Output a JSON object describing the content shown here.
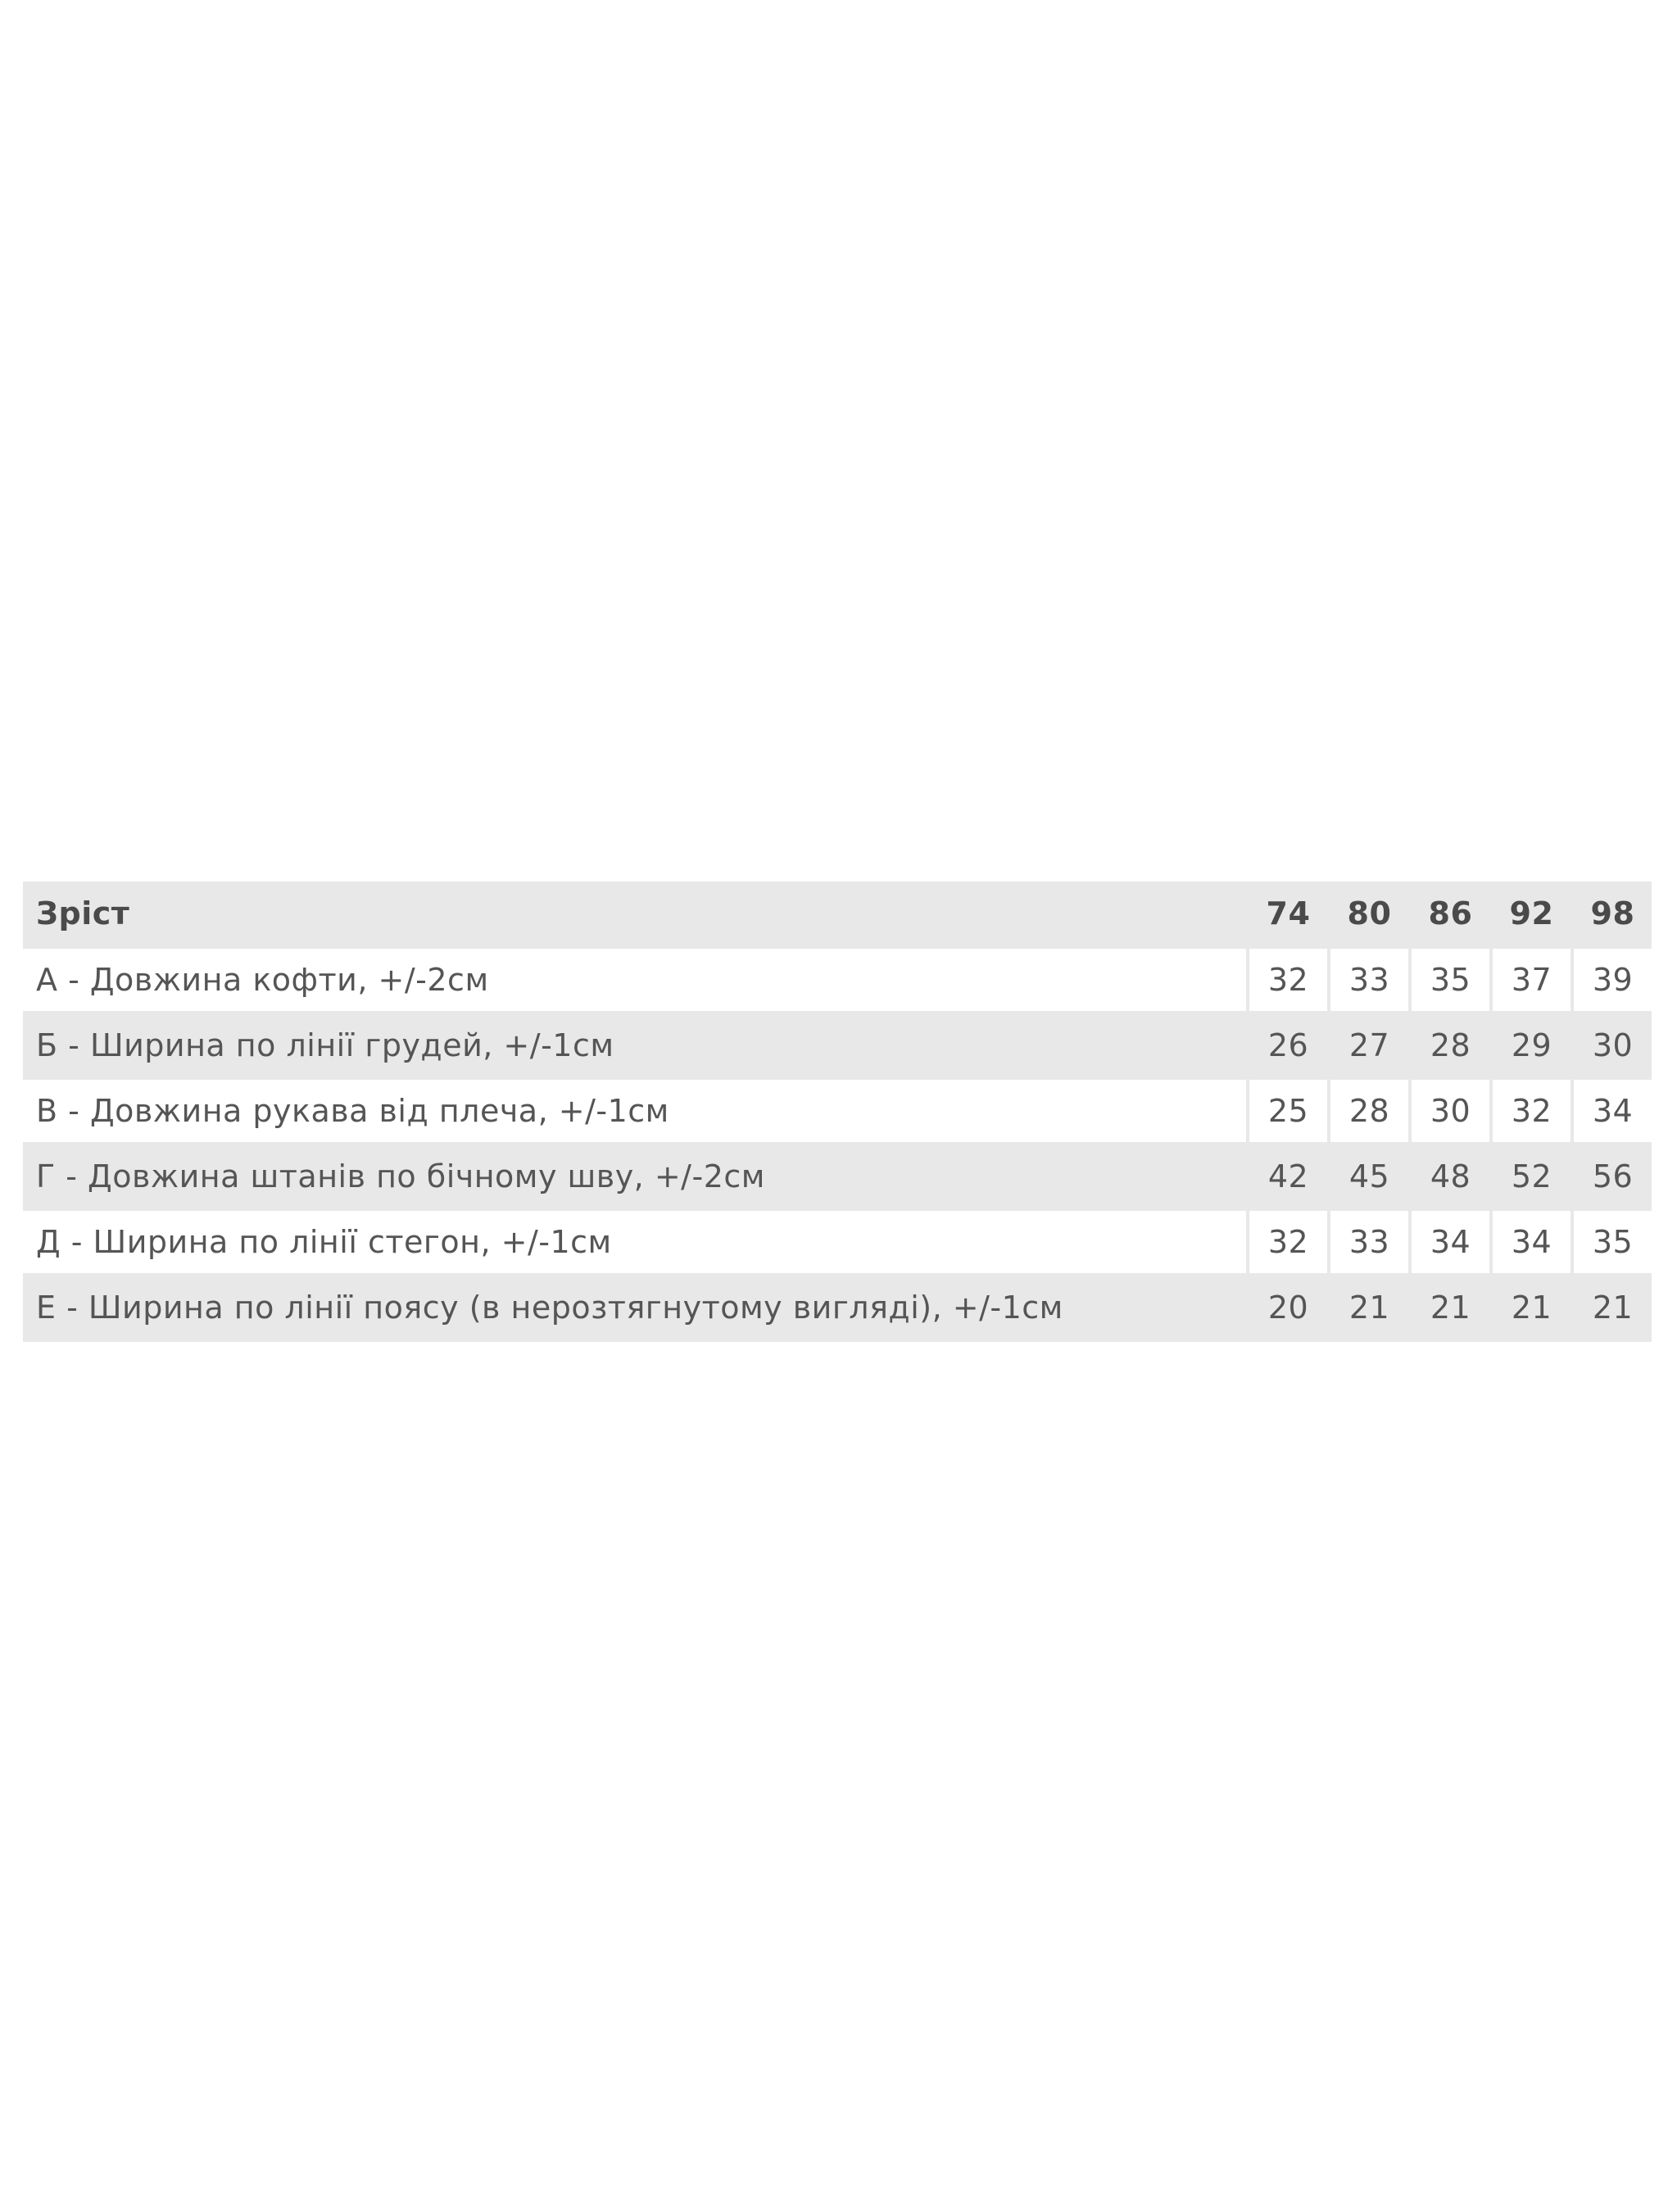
{
  "size_table": {
    "header": {
      "label": "Зріст",
      "sizes": [
        "74",
        "80",
        "86",
        "92",
        "98"
      ]
    },
    "rows": [
      {
        "label": "А - Довжина кофти, +/-2см",
        "values": [
          "32",
          "33",
          "35",
          "37",
          "39"
        ]
      },
      {
        "label": "Б - Ширина по лінії грудей, +/-1см",
        "values": [
          "26",
          "27",
          "28",
          "29",
          "30"
        ]
      },
      {
        "label": "В - Довжина рукава від плеча, +/-1см",
        "values": [
          "25",
          "28",
          "30",
          "32",
          "34"
        ]
      },
      {
        "label": "Г - Довжина штанів по бічному шву, +/-2см",
        "values": [
          "42",
          "45",
          "48",
          "52",
          "56"
        ]
      },
      {
        "label": "Д - Ширина по лінії стегон, +/-1см",
        "values": [
          "32",
          "33",
          "34",
          "34",
          "35"
        ]
      },
      {
        "label": "Е - Ширина по лінії поясу (в нерозтягнутому вигляді), +/-1см",
        "values": [
          "20",
          "21",
          "21",
          "21",
          "21"
        ]
      }
    ]
  },
  "colors": {
    "row_alt": "#e8e8e8",
    "row": "#ffffff",
    "text": "#555555"
  }
}
